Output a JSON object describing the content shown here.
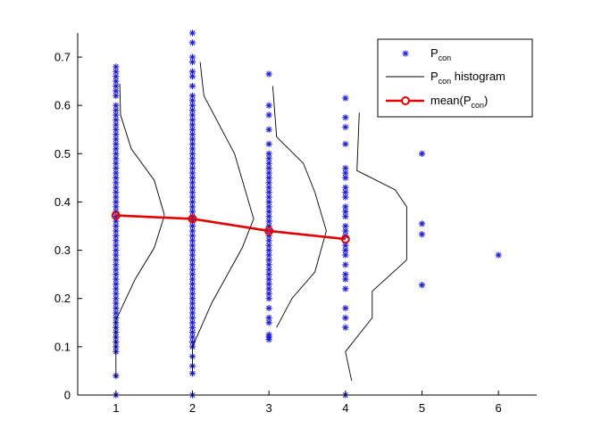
{
  "chart_data": {
    "type": "scatter",
    "xlim": [
      0.5,
      6.5
    ],
    "ylim": [
      0,
      0.75
    ],
    "xticks": [
      "1",
      "2",
      "3",
      "4",
      "5",
      "6"
    ],
    "yticks": [
      "0",
      "0.1",
      "0.2",
      "0.3",
      "0.4",
      "0.5",
      "0.6",
      "0.7"
    ],
    "grid": false,
    "legend_position": "top-right",
    "legend": [
      {
        "main": "P",
        "sub": "con",
        "suffix": ""
      },
      {
        "main": "P",
        "sub": "con",
        "suffix": " histogram"
      },
      {
        "main": "mean(P",
        "sub": "con",
        "suffix": ")"
      }
    ],
    "colors": {
      "points": "#1f1fd6",
      "histogram": "#000000",
      "mean": "#e00000"
    },
    "series": [
      {
        "role": "points",
        "groups": [
          {
            "x": 1,
            "y": [
              0,
              0.04,
              0.09,
              0.1,
              0.11,
              0.12,
              0.13,
              0.14,
              0.15,
              0.16,
              0.17,
              0.18,
              0.19,
              0.2,
              0.21,
              0.22,
              0.23,
              0.24,
              0.25,
              0.26,
              0.27,
              0.28,
              0.29,
              0.3,
              0.31,
              0.32,
              0.33,
              0.34,
              0.35,
              0.36,
              0.37,
              0.38,
              0.39,
              0.4,
              0.41,
              0.42,
              0.43,
              0.44,
              0.45,
              0.46,
              0.47,
              0.48,
              0.49,
              0.5,
              0.51,
              0.52,
              0.53,
              0.54,
              0.55,
              0.56,
              0.57,
              0.58,
              0.59,
              0.6,
              0.62,
              0.63,
              0.64,
              0.65,
              0.66,
              0.67,
              0.68
            ]
          },
          {
            "x": 2,
            "y": [
              0,
              0.045,
              0.06,
              0.08,
              0.1,
              0.11,
              0.12,
              0.13,
              0.14,
              0.15,
              0.16,
              0.17,
              0.18,
              0.19,
              0.2,
              0.21,
              0.22,
              0.23,
              0.24,
              0.25,
              0.26,
              0.27,
              0.28,
              0.29,
              0.3,
              0.31,
              0.32,
              0.33,
              0.34,
              0.35,
              0.36,
              0.37,
              0.38,
              0.39,
              0.4,
              0.41,
              0.42,
              0.43,
              0.44,
              0.45,
              0.46,
              0.47,
              0.48,
              0.49,
              0.5,
              0.51,
              0.52,
              0.53,
              0.54,
              0.55,
              0.56,
              0.57,
              0.58,
              0.59,
              0.6,
              0.61,
              0.62,
              0.64,
              0.66,
              0.67,
              0.69,
              0.7,
              0.73,
              0.75
            ]
          },
          {
            "x": 3,
            "y": [
              0.115,
              0.12,
              0.125,
              0.15,
              0.16,
              0.18,
              0.2,
              0.21,
              0.22,
              0.23,
              0.24,
              0.25,
              0.26,
              0.27,
              0.28,
              0.29,
              0.3,
              0.31,
              0.32,
              0.33,
              0.34,
              0.35,
              0.36,
              0.37,
              0.38,
              0.39,
              0.4,
              0.41,
              0.42,
              0.43,
              0.44,
              0.45,
              0.46,
              0.47,
              0.48,
              0.49,
              0.5,
              0.52,
              0.55,
              0.58,
              0.6,
              0.665
            ]
          },
          {
            "x": 4,
            "y": [
              0,
              0.14,
              0.16,
              0.18,
              0.22,
              0.24,
              0.25,
              0.27,
              0.29,
              0.3,
              0.31,
              0.33,
              0.34,
              0.35,
              0.37,
              0.38,
              0.39,
              0.41,
              0.42,
              0.43,
              0.45,
              0.46,
              0.47,
              0.52,
              0.555,
              0.575,
              0.615
            ]
          },
          {
            "x": 5,
            "y": [
              0.228,
              0.333,
              0.355,
              0.5
            ]
          },
          {
            "x": 6,
            "y": [
              0.29
            ]
          }
        ]
      },
      {
        "role": "histogram",
        "curves": [
          {
            "points": [
              [
                1.0,
                0.035
              ],
              [
                1.0,
                0.155
              ],
              [
                1.25,
                0.24
              ],
              [
                1.5,
                0.305
              ],
              [
                1.63,
                0.37
              ],
              [
                1.63,
                0.375
              ],
              [
                1.5,
                0.445
              ],
              [
                1.2,
                0.51
              ],
              [
                1.06,
                0.58
              ],
              [
                1.05,
                0.645
              ]
            ]
          },
          {
            "points": [
              [
                2.0,
                0.045
              ],
              [
                2.0,
                0.1
              ],
              [
                2.25,
                0.19
              ],
              [
                2.65,
                0.305
              ],
              [
                2.8,
                0.365
              ],
              [
                2.55,
                0.5
              ],
              [
                2.15,
                0.62
              ],
              [
                2.1,
                0.69
              ]
            ]
          },
          {
            "points": [
              [
                3.1,
                0.14
              ],
              [
                3.3,
                0.2
              ],
              [
                3.6,
                0.255
              ],
              [
                3.75,
                0.34
              ],
              [
                3.6,
                0.42
              ],
              [
                3.45,
                0.48
              ],
              [
                3.1,
                0.535
              ],
              [
                3.05,
                0.64
              ]
            ]
          },
          {
            "points": [
              [
                4.08,
                0.03
              ],
              [
                4.0,
                0.09
              ],
              [
                4.35,
                0.16
              ],
              [
                4.35,
                0.215
              ],
              [
                4.8,
                0.28
              ],
              [
                4.8,
                0.39
              ],
              [
                4.65,
                0.425
              ],
              [
                4.15,
                0.465
              ],
              [
                4.18,
                0.585
              ]
            ]
          }
        ]
      },
      {
        "role": "mean",
        "x": [
          1,
          2,
          3,
          4
        ],
        "y": [
          0.372,
          0.365,
          0.34,
          0.323
        ]
      }
    ]
  }
}
